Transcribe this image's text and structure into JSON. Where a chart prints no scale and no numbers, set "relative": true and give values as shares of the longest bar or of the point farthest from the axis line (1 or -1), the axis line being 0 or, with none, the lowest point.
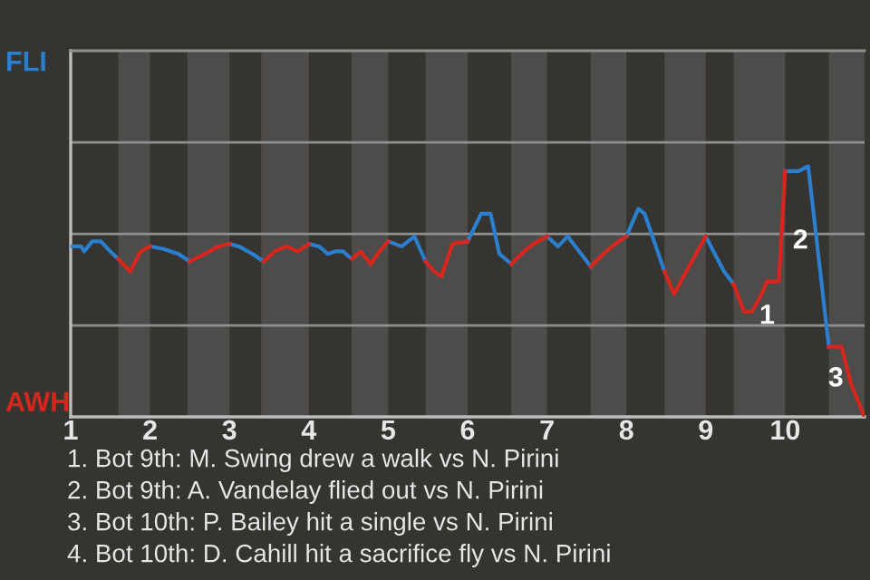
{
  "chart_data": {
    "type": "line",
    "relative": true,
    "x": [
      1.0,
      1.13,
      1.17,
      1.27,
      1.38,
      1.5,
      1.6,
      1.75,
      1.88,
      2.0,
      2.17,
      2.36,
      2.5,
      2.69,
      2.86,
      3.0,
      3.12,
      3.29,
      3.43,
      3.57,
      3.71,
      3.86,
      4.0,
      4.13,
      4.24,
      4.33,
      4.43,
      4.54,
      4.65,
      4.78,
      4.89,
      5.0,
      5.17,
      5.33,
      5.47,
      5.58,
      5.67,
      5.81,
      6.0,
      6.17,
      6.29,
      6.4,
      6.55,
      6.71,
      6.83,
      7.0,
      7.14,
      7.26,
      7.55,
      7.71,
      7.86,
      8.0,
      8.15,
      8.23,
      8.48,
      8.6,
      8.79,
      9.0,
      9.13,
      9.23,
      9.35,
      9.48,
      9.58,
      9.69,
      9.77,
      9.85,
      9.92,
      10.0,
      10.17,
      10.29,
      10.55,
      10.71,
      10.83,
      11.0
    ],
    "xlim": [
      1,
      11
    ],
    "xticks": [
      1,
      2,
      3,
      4,
      5,
      6,
      7,
      8,
      9,
      10
    ],
    "series": [
      {
        "name": "FLI",
        "color": "#2a7fcf",
        "values": [
          0.68,
          0.68,
          0.66,
          0.7,
          0.7,
          0.66,
          0.63,
          null,
          null,
          0.68,
          0.67,
          0.65,
          0.62,
          null,
          null,
          0.69,
          0.68,
          0.65,
          0.62,
          null,
          null,
          null,
          0.69,
          0.68,
          0.65,
          0.66,
          0.66,
          0.63,
          null,
          null,
          null,
          0.7,
          0.68,
          0.72,
          0.62,
          null,
          null,
          null,
          0.7,
          0.81,
          0.81,
          0.65,
          0.61,
          null,
          null,
          0.72,
          0.68,
          0.72,
          0.6,
          null,
          null,
          0.72,
          0.83,
          0.81,
          0.58,
          null,
          null,
          0.72,
          0.64,
          0.58,
          0.53,
          null,
          null,
          null,
          null,
          null,
          null,
          0.98,
          0.98,
          1,
          0.28,
          null,
          null,
          null
        ]
      },
      {
        "name": "AWH",
        "color": "#d7261e",
        "values": [
          null,
          null,
          null,
          null,
          null,
          null,
          0.63,
          0.58,
          0.66,
          0.68,
          null,
          null,
          0.62,
          0.65,
          0.68,
          0.69,
          null,
          null,
          0.62,
          0.66,
          0.68,
          0.66,
          0.69,
          null,
          null,
          null,
          null,
          0.63,
          0.66,
          0.61,
          0.66,
          0.7,
          null,
          null,
          0.62,
          0.58,
          0.56,
          0.69,
          0.7,
          null,
          null,
          null,
          0.61,
          0.66,
          0.69,
          0.72,
          null,
          null,
          0.6,
          0.65,
          0.69,
          0.72,
          null,
          null,
          0.58,
          0.49,
          0.6,
          0.72,
          null,
          null,
          0.53,
          0.42,
          0.42,
          0.48,
          0.54,
          0.54,
          0.54,
          0.98,
          null,
          null,
          0.28,
          0.28,
          0.13,
          0
        ]
      }
    ],
    "bands": [
      {
        "axis": "x",
        "from": 1.6,
        "to": 2,
        "color": "#4e4c4a"
      },
      {
        "axis": "x",
        "from": 2.47,
        "to": 3,
        "color": "#4e4c4a"
      },
      {
        "axis": "x",
        "from": 3.4,
        "to": 4,
        "color": "#4e4c4a"
      },
      {
        "axis": "x",
        "from": 4.54,
        "to": 5,
        "color": "#4e4c4a"
      },
      {
        "axis": "x",
        "from": 5.47,
        "to": 6,
        "color": "#4e4c4a"
      },
      {
        "axis": "x",
        "from": 6.55,
        "to": 7,
        "color": "#4e4c4a"
      },
      {
        "axis": "x",
        "from": 7.55,
        "to": 8,
        "color": "#4e4c4a"
      },
      {
        "axis": "x",
        "from": 8.48,
        "to": 9,
        "color": "#4e4c4a"
      },
      {
        "axis": "x",
        "from": 9.35,
        "to": 10,
        "color": "#4e4c4a"
      },
      {
        "axis": "x",
        "from": 10.55,
        "to": 11,
        "color": "#4e4c4a"
      }
    ],
    "ref_lines": [
      {
        "axis": "y",
        "value": 0.365,
        "color": "#8f8f8f"
      },
      {
        "axis": "y",
        "value": 0.73,
        "color": "#8f8f8f"
      },
      {
        "axis": "y",
        "value": 1.095,
        "color": "#8f8f8f"
      }
    ],
    "marker": "none",
    "line_style": "solid",
    "annotations": [
      {
        "text": "1",
        "x": 9.58,
        "y": 0.42
      },
      {
        "text": "2",
        "x": 10.0,
        "y": 0.72
      },
      {
        "text": "3",
        "x": 10.83,
        "y": 0.13
      },
      "1. Bot 9th: M. Swing drew a walk vs N. Pirini",
      "2. Bot 9th: A. Vandelay flied out vs N. Pirini",
      "3. Bot 10th: P. Bailey hit a single vs N. Pirini",
      "4. Bot 10th: D. Cahill hit a sacrifice fly vs N. Pirini"
    ]
  }
}
